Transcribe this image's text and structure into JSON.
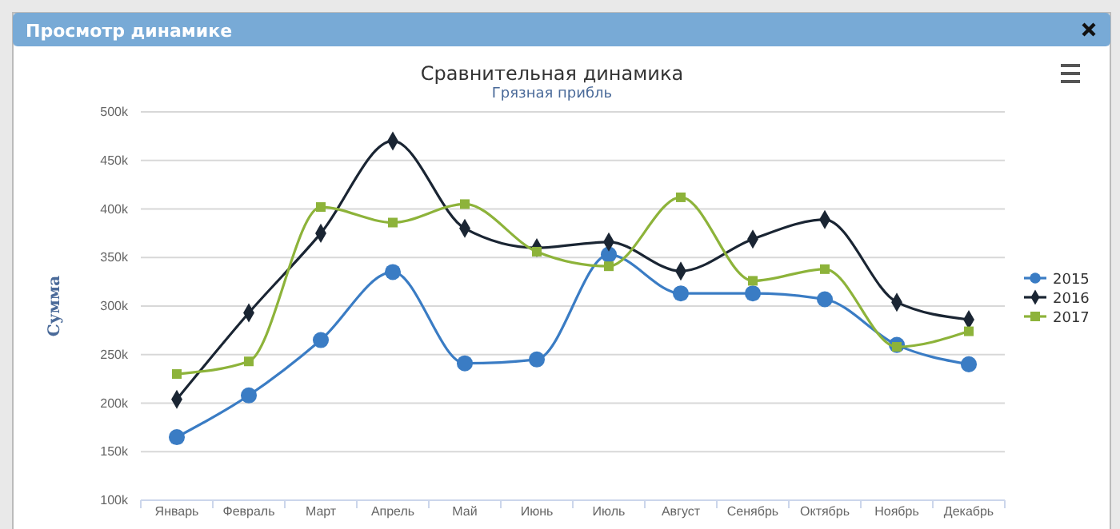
{
  "chart_data": {
    "type": "line",
    "title": "Сравнительная динамика",
    "subtitle": "Грязная прибль",
    "ylabel": "Сумма",
    "annotations": [
      "Просмотр динамике"
    ],
    "categories": [
      "Январь",
      "Февраль",
      "Март",
      "Апрель",
      "Май",
      "Июнь",
      "Июль",
      "Август",
      "Сенябрь",
      "Октябрь",
      "Ноябрь",
      "Декабрь"
    ],
    "series": [
      {
        "name": "2015",
        "color": "#3a7cc4",
        "marker": "circle",
        "values": [
          165000,
          208000,
          265000,
          335000,
          241000,
          245000,
          353000,
          313000,
          313000,
          307000,
          260000,
          240000
        ]
      },
      {
        "name": "2016",
        "color": "#1a2533",
        "marker": "diamond",
        "values": [
          204000,
          293000,
          375000,
          470000,
          380000,
          360000,
          366000,
          336000,
          369000,
          389000,
          304000,
          286000
        ]
      },
      {
        "name": "2017",
        "color": "#8db33a",
        "marker": "square",
        "values": [
          230000,
          243000,
          402000,
          386000,
          405000,
          356000,
          341000,
          412000,
          326000,
          338000,
          258000,
          274000
        ]
      }
    ],
    "ylim": [
      100000,
      500000
    ],
    "yticks": [
      {
        "value": 100000,
        "label": "100k"
      },
      {
        "value": 150000,
        "label": "150k"
      },
      {
        "value": 200000,
        "label": "200k"
      },
      {
        "value": 250000,
        "label": "250k"
      },
      {
        "value": 300000,
        "label": "300k"
      },
      {
        "value": 350000,
        "label": "350k"
      },
      {
        "value": 400000,
        "label": "400k"
      },
      {
        "value": 450000,
        "label": "450k"
      },
      {
        "value": 500000,
        "label": "500k"
      }
    ],
    "grid": "y",
    "legend": "right",
    "line_style": "solid"
  }
}
